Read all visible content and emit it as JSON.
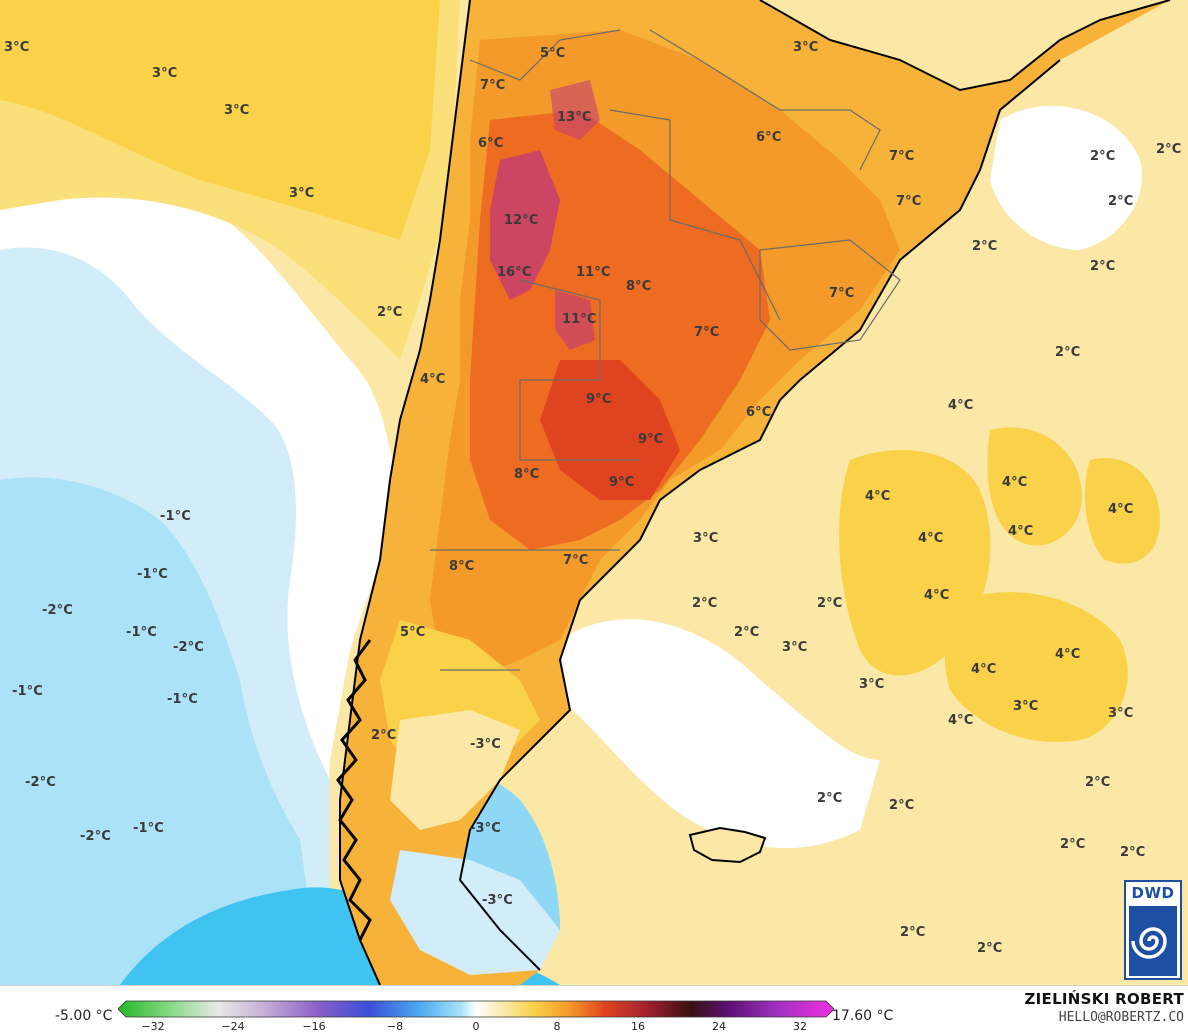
{
  "map": {
    "colors": {
      "ocean_light_blue": "#d2ecfa",
      "ocean_cyan": "#8fd8f5",
      "ocean_deep_cyan": "#3fc3f0",
      "pale_yellow": "#fbe8a6",
      "yellow": "#f9d24a",
      "orange_light": "#f7b23a",
      "orange": "#f39a2a",
      "orange_red": "#ee6b22",
      "red": "#e0431f",
      "magenta": "#c03a7a",
      "coastline": "#000000",
      "borders": "#555555"
    },
    "labels": [
      {
        "text": "3°C"
      },
      {
        "text": "3°C"
      },
      {
        "text": "3°C"
      },
      {
        "text": "3°C"
      },
      {
        "text": "5°C"
      },
      {
        "text": "7°C"
      },
      {
        "text": "13°C"
      },
      {
        "text": "6°C"
      },
      {
        "text": "3°C"
      },
      {
        "text": "6°C"
      },
      {
        "text": "7°C"
      },
      {
        "text": "2°C"
      },
      {
        "text": "2°C"
      },
      {
        "text": "7°C"
      },
      {
        "text": "2°C"
      },
      {
        "text": "12°C"
      },
      {
        "text": "2°C"
      },
      {
        "text": "16°C"
      },
      {
        "text": "11°C"
      },
      {
        "text": "8°C"
      },
      {
        "text": "7°C"
      },
      {
        "text": "2°C"
      },
      {
        "text": "11°C"
      },
      {
        "text": "7°C"
      },
      {
        "text": "2°C"
      },
      {
        "text": "4°C"
      },
      {
        "text": "2°C"
      },
      {
        "text": "9°C"
      },
      {
        "text": "6°C"
      },
      {
        "text": "4°C"
      },
      {
        "text": "9°C"
      },
      {
        "text": "8°C"
      },
      {
        "text": "9°C"
      },
      {
        "text": "4°C"
      },
      {
        "text": "4°C"
      },
      {
        "text": "-1°C"
      },
      {
        "text": "4°C"
      },
      {
        "text": "4°C"
      },
      {
        "text": "3°C"
      },
      {
        "text": "4°C"
      },
      {
        "text": "-1°C"
      },
      {
        "text": "8°C"
      },
      {
        "text": "7°C"
      },
      {
        "text": "-2°C"
      },
      {
        "text": "2°C"
      },
      {
        "text": "2°C"
      },
      {
        "text": "4°C"
      },
      {
        "text": "-1°C"
      },
      {
        "text": "2°C"
      },
      {
        "text": "-2°C"
      },
      {
        "text": "3°C"
      },
      {
        "text": "5°C"
      },
      {
        "text": "4°C"
      },
      {
        "text": "4°C"
      },
      {
        "text": "-1°C"
      },
      {
        "text": "-1°C"
      },
      {
        "text": "3°C"
      },
      {
        "text": "3°C"
      },
      {
        "text": "3°C"
      },
      {
        "text": "4°C"
      },
      {
        "text": "2°C"
      },
      {
        "text": "-3°C"
      },
      {
        "text": "-2°C"
      },
      {
        "text": "2°C"
      },
      {
        "text": "2°C"
      },
      {
        "text": "2°C"
      },
      {
        "text": "-2°C"
      },
      {
        "text": "-1°C"
      },
      {
        "text": "-3°C"
      },
      {
        "text": "2°C"
      },
      {
        "text": "2°C"
      },
      {
        "text": "-3°C"
      },
      {
        "text": "2°C"
      },
      {
        "text": "2°C"
      }
    ]
  },
  "logo": {
    "text": "DWD"
  },
  "legend": {
    "min_label": "-5.00 °C",
    "max_label": "17.60 °C",
    "ticks": [
      "−32",
      "−24",
      "−16",
      "−8",
      "0",
      "8",
      "16",
      "24",
      "32"
    ]
  },
  "credits": {
    "author": "ZIELIŃSKI ROBERT",
    "email": "HELLO@ROBERTZ.CO"
  }
}
